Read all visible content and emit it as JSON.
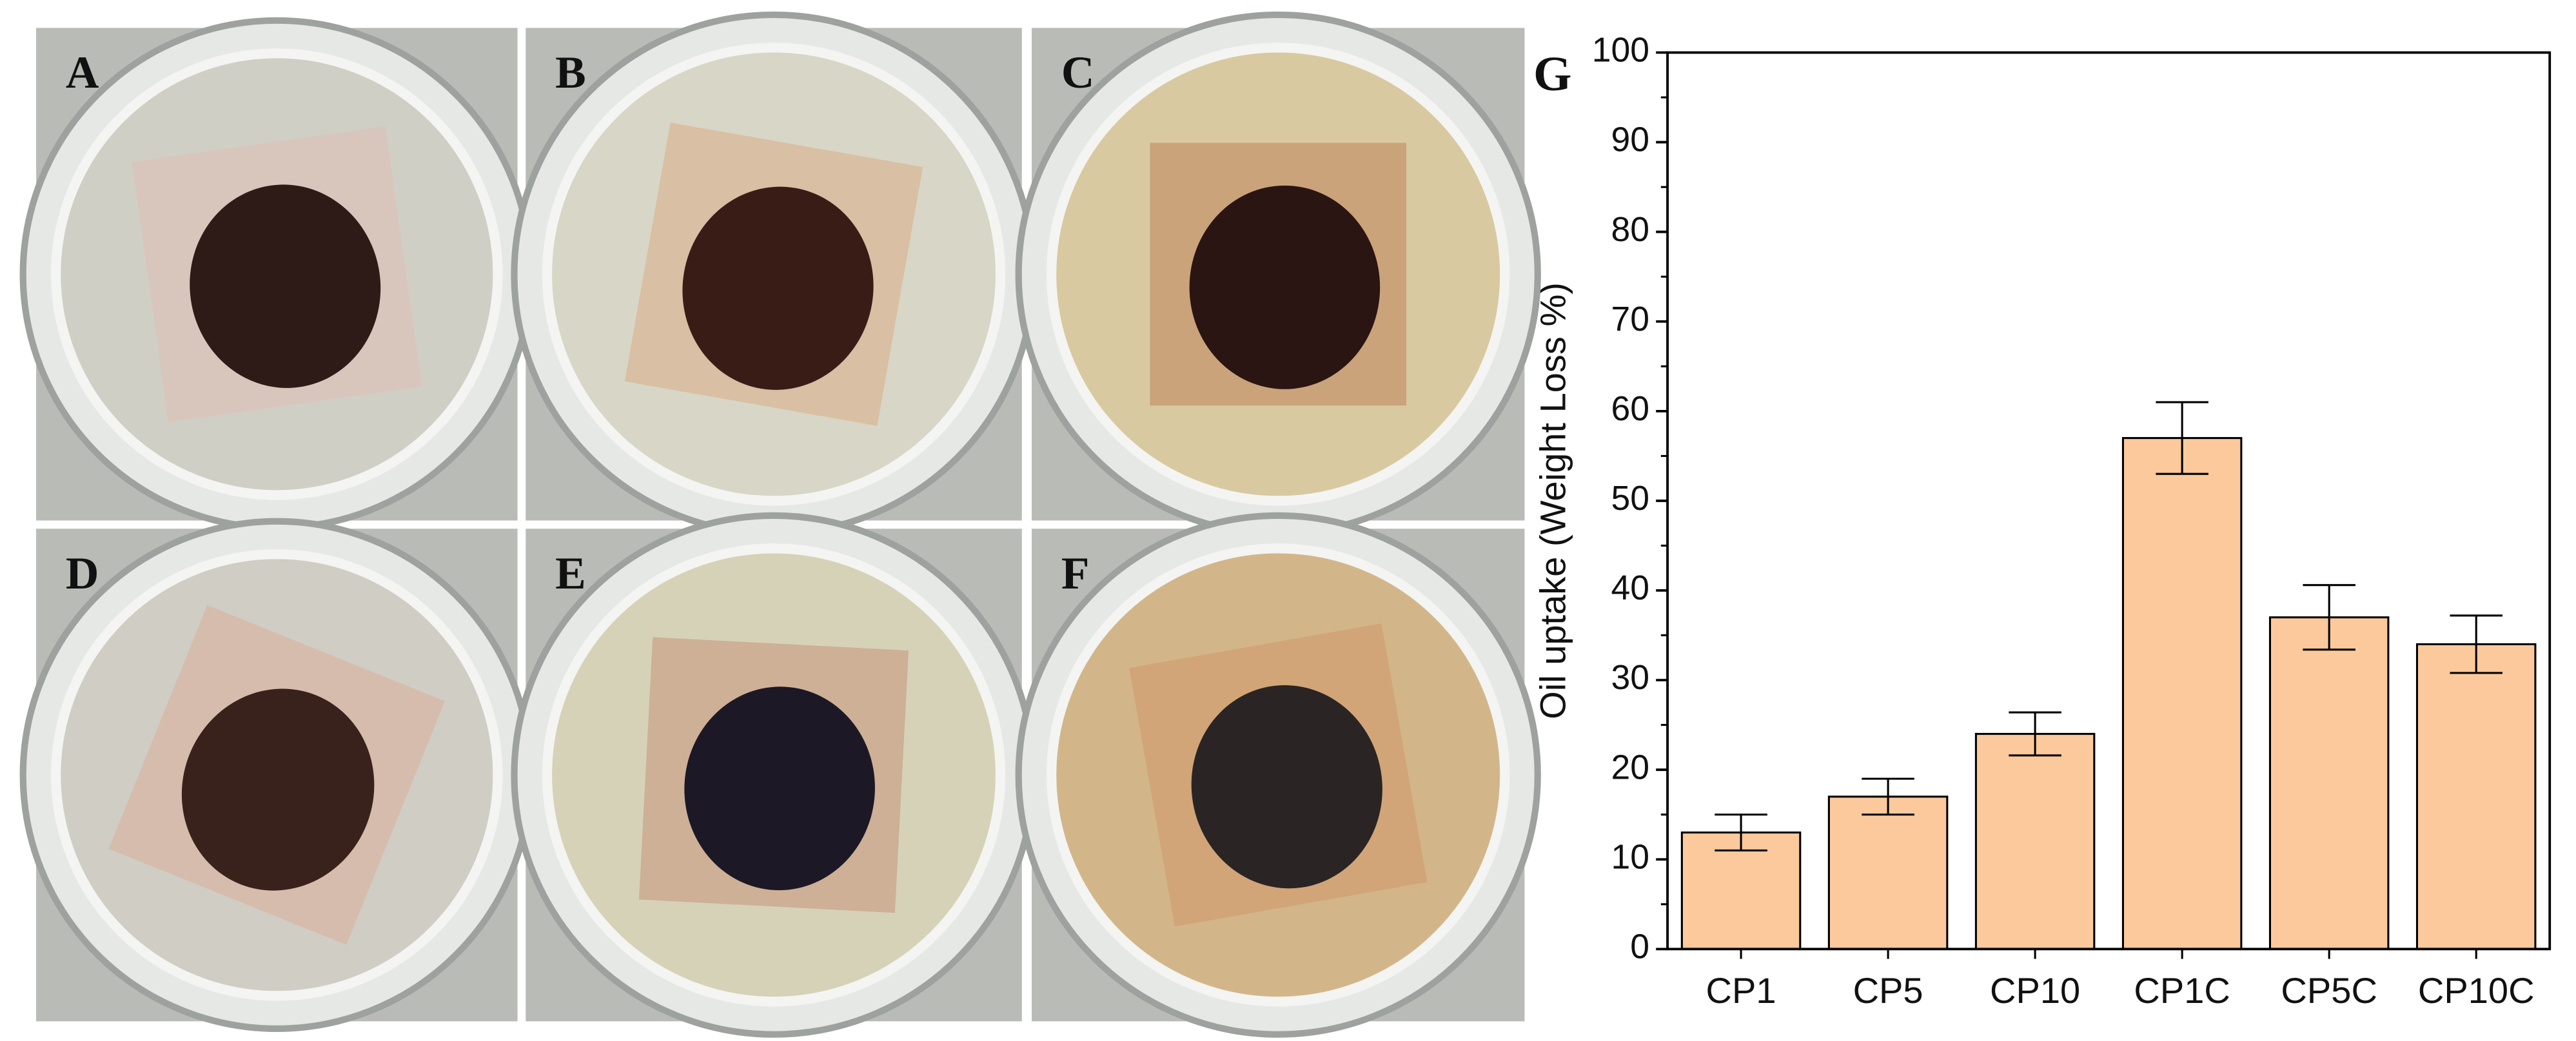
{
  "panels": [
    "A",
    "B",
    "C",
    "D",
    "E",
    "F"
  ],
  "chart_data": {
    "type": "bar",
    "panel_label": "G",
    "ylabel": "Oil uptake (Weight Loss %)",
    "categories": [
      "CP1",
      "CP5",
      "CP10",
      "CP1C",
      "CP5C",
      "CP10C"
    ],
    "values": [
      13,
      17,
      24,
      57,
      37,
      34
    ],
    "errors": [
      2,
      2,
      2.4,
      4,
      3.6,
      3.2
    ],
    "color": "#fbc99b",
    "ylim": [
      0,
      100
    ],
    "yticks": [
      0,
      10,
      20,
      30,
      40,
      50,
      60,
      70,
      80,
      90,
      100
    ]
  }
}
